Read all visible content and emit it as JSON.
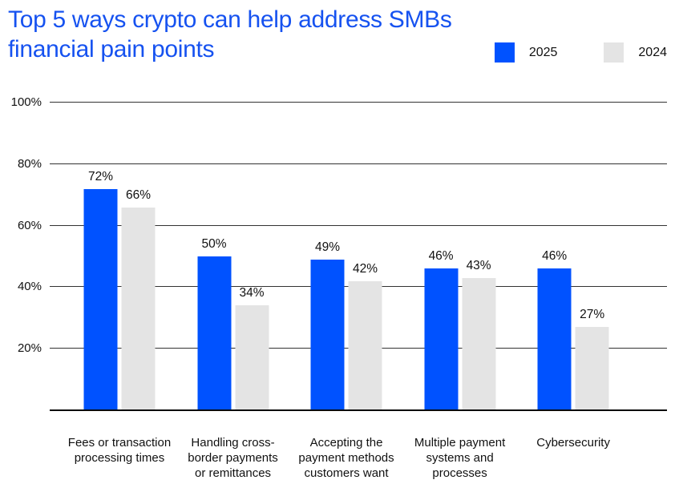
{
  "title": "Top 5 ways crypto can help address SMBs financial pain points",
  "colors": {
    "title_blue": "#1652F0",
    "bar_blue": "#0052FF",
    "bar_gray": "#E4E4E4",
    "grid": "#333333",
    "text": "#111111"
  },
  "legend": [
    {
      "label": "2025",
      "color": "#0052FF"
    },
    {
      "label": "2024",
      "color": "#E4E4E4"
    }
  ],
  "chart_data": {
    "type": "bar",
    "title": "Top 5 ways crypto can help address SMBs financial pain points",
    "categories": [
      "Fees or transaction processing times",
      "Handling cross-border payments or remittances",
      "Accepting the payment methods customers want",
      "Multiple payment systems and processes",
      "Cybersecurity"
    ],
    "series": [
      {
        "name": "2025",
        "color": "#0052FF",
        "values": [
          72,
          50,
          49,
          46,
          46
        ]
      },
      {
        "name": "2024",
        "color": "#E4E4E4",
        "values": [
          66,
          34,
          42,
          43,
          27
        ]
      }
    ],
    "value_suffix": "%",
    "y_ticks": [
      20,
      40,
      60,
      80,
      100
    ],
    "ylim": [
      0,
      100
    ],
    "grid": true,
    "legend_position": "top-right"
  }
}
